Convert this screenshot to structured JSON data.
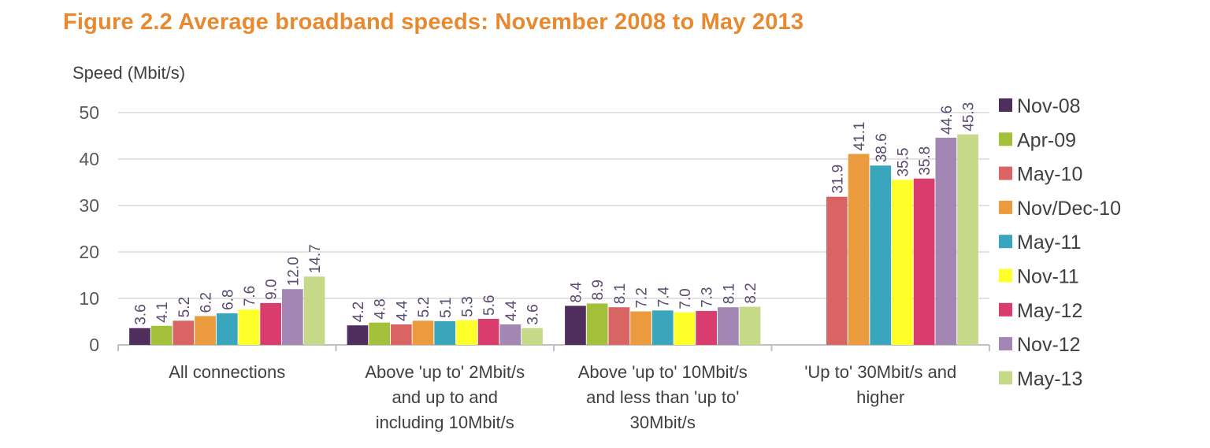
{
  "title": "Figure 2.2 Average broadband speeds: November 2008 to May 2013",
  "chart_data": {
    "type": "bar",
    "title": "Figure 2.2 Average broadband speeds: November 2008 to May 2013",
    "ylabel": "Speed (Mbit/s)",
    "xlabel": "",
    "ylim": [
      0,
      50
    ],
    "yticks": [
      0,
      10,
      20,
      30,
      40,
      50
    ],
    "grid": true,
    "legend_position": "right",
    "categories": [
      [
        "All connections"
      ],
      [
        "Above 'up to' 2Mbit/s",
        "and up to and",
        "including 10Mbit/s"
      ],
      [
        "Above 'up to' 10Mbit/s",
        "and less than 'up to'",
        "30Mbit/s"
      ],
      [
        "'Up to' 30Mbit/s and",
        "higher"
      ]
    ],
    "series": [
      {
        "name": "Nov-08",
        "color": "#4f2d5c",
        "values": [
          3.6,
          4.2,
          8.4,
          null
        ]
      },
      {
        "name": "Apr-09",
        "color": "#a4bf3a",
        "values": [
          4.1,
          4.8,
          8.9,
          null
        ]
      },
      {
        "name": "May-10",
        "color": "#d96464",
        "values": [
          5.2,
          4.4,
          8.1,
          31.9
        ]
      },
      {
        "name": "Nov/Dec-10",
        "color": "#ec9a3e",
        "values": [
          6.2,
          5.2,
          7.2,
          41.1
        ]
      },
      {
        "name": "May-11",
        "color": "#3aa6bd",
        "values": [
          6.8,
          5.1,
          7.4,
          38.6
        ]
      },
      {
        "name": "Nov-11",
        "color": "#ffff2a",
        "values": [
          7.6,
          5.3,
          7.0,
          35.5
        ]
      },
      {
        "name": "May-12",
        "color": "#d93d6e",
        "values": [
          9.0,
          5.6,
          7.3,
          35.8
        ]
      },
      {
        "name": "Nov-12",
        "color": "#a386b3",
        "values": [
          12.0,
          4.4,
          8.1,
          44.6
        ]
      },
      {
        "name": "May-13",
        "color": "#c6d988",
        "values": [
          14.7,
          3.6,
          8.2,
          45.3
        ]
      }
    ]
  }
}
